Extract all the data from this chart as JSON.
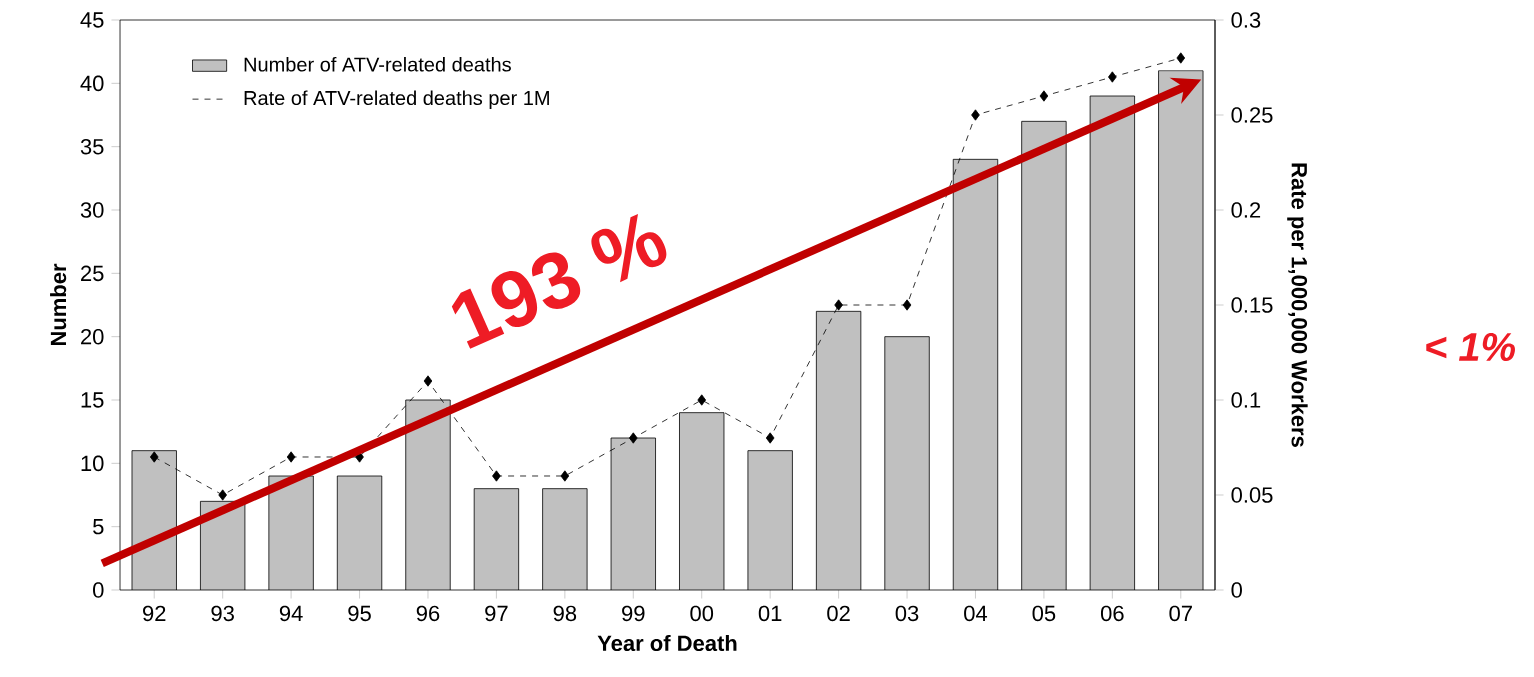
{
  "chart_data": {
    "type": "bar",
    "xlabel": "Year of Death",
    "ylabel": "Number",
    "y2label": "Rate per 1,000,000 Workers",
    "categories": [
      "92",
      "93",
      "94",
      "95",
      "96",
      "97",
      "98",
      "99",
      "00",
      "01",
      "02",
      "03",
      "04",
      "05",
      "06",
      "07"
    ],
    "series": [
      {
        "name": "Number of ATV-related deaths",
        "color": "#c0c0c0",
        "values": [
          11,
          7,
          9,
          9,
          15,
          8,
          8,
          12,
          14,
          11,
          22,
          20,
          34,
          37,
          39,
          41
        ]
      },
      {
        "name": "Rate of ATV-related deaths per 1M",
        "type": "line",
        "axis": "y2",
        "color": "#000000",
        "marker": "diamond",
        "line_style": "dashed",
        "values": [
          0.07,
          0.05,
          0.07,
          0.07,
          0.11,
          0.06,
          0.06,
          0.08,
          0.1,
          0.08,
          0.15,
          0.15,
          0.25,
          0.26,
          0.27,
          0.28
        ]
      }
    ],
    "ylim": [
      0,
      45
    ],
    "yticks": [
      0,
      5,
      10,
      15,
      20,
      25,
      30,
      35,
      40,
      45
    ],
    "y2lim": [
      0,
      0.3
    ],
    "y2ticks": [
      0,
      0.05,
      0.1,
      0.15,
      0.2,
      0.25,
      0.3
    ],
    "legend": "top left",
    "annotations": [
      "193 %",
      "< 1%"
    ]
  }
}
